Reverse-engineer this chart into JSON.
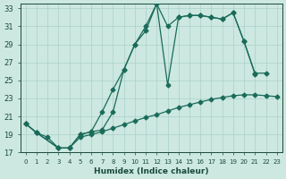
{
  "xlabel": "Humidex (Indice chaleur)",
  "bg_color": "#cce8e0",
  "grid_color": "#aad0c8",
  "line_color": "#1a6b5a",
  "xlim_min": -0.5,
  "xlim_max": 23.5,
  "ylim_min": 17,
  "ylim_max": 33.5,
  "yticks": [
    17,
    19,
    21,
    23,
    25,
    27,
    29,
    31,
    33
  ],
  "xticks": [
    0,
    1,
    2,
    3,
    4,
    5,
    6,
    7,
    8,
    9,
    10,
    11,
    12,
    13,
    14,
    15,
    16,
    17,
    18,
    19,
    20,
    21,
    22,
    23
  ],
  "line_diagonal_x": [
    0,
    1,
    2,
    3,
    4,
    5,
    6,
    7,
    8,
    9,
    10,
    11,
    12,
    13,
    14,
    15,
    16,
    17,
    18,
    19,
    20,
    21,
    22,
    23
  ],
  "line_diagonal_y": [
    20.2,
    19.2,
    18.7,
    17.5,
    17.5,
    18.7,
    19.0,
    19.3,
    19.7,
    20.1,
    20.5,
    20.9,
    21.2,
    21.6,
    22.0,
    22.3,
    22.6,
    22.9,
    23.1,
    23.3,
    23.4,
    23.4,
    23.3,
    23.2
  ],
  "line_mid_x": [
    0,
    1,
    3,
    4,
    5,
    6,
    7,
    8,
    9,
    10,
    11,
    12,
    13,
    14,
    15,
    16,
    17,
    18,
    19,
    20,
    21
  ],
  "line_mid_y": [
    20.2,
    19.2,
    17.5,
    17.5,
    19.0,
    19.3,
    21.5,
    24.0,
    26.2,
    29.0,
    31.0,
    33.5,
    24.5,
    32.0,
    32.2,
    32.2,
    32.0,
    31.8,
    32.5,
    29.3,
    25.7
  ],
  "line_top_x": [
    0,
    1,
    3,
    4,
    5,
    6,
    7,
    8,
    9,
    10,
    11,
    12,
    13,
    14,
    15,
    16,
    17,
    18,
    19,
    20,
    21,
    22
  ],
  "line_top_y": [
    20.2,
    19.2,
    17.5,
    17.5,
    19.0,
    19.3,
    19.5,
    21.5,
    26.2,
    29.0,
    30.5,
    33.5,
    31.0,
    32.0,
    32.2,
    32.2,
    32.0,
    31.8,
    32.5,
    29.3,
    25.8,
    25.8
  ]
}
